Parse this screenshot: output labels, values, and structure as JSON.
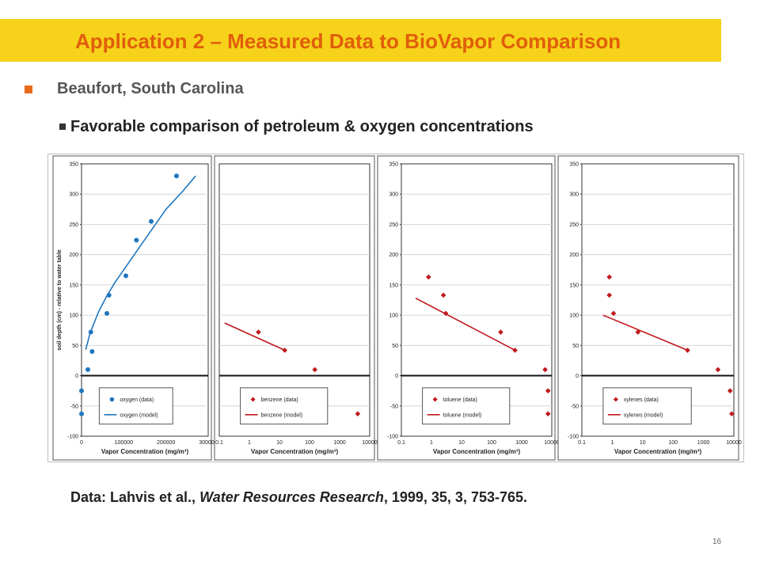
{
  "slide": {
    "title": "Application 2 – Measured Data to BioVapor Comparison",
    "bullet_l1": "Beaufort, South Carolina",
    "bullet_l2": "Favorable comparison of petroleum & oxygen concentrations",
    "citation": {
      "prefix": "Data: Lahvis et al., ",
      "journal": "Water Resources Research",
      "suffix": ", 1999, 35, 3, 753-765."
    },
    "page_number": "16"
  },
  "colors": {
    "title_bar": "#f6d21b",
    "title_text": "#e15e0b",
    "oxygen": "#1f77c0",
    "petroleum": "#c0181c",
    "bullet_marker": "#e8691b"
  },
  "chart_data": [
    {
      "type": "scatter",
      "x_scale": "linear",
      "xlim": [
        0,
        300000
      ],
      "ylim": [
        -100,
        350
      ],
      "xticks": [
        "0",
        "100000",
        "200000",
        "300000"
      ],
      "yticks": [
        "-100",
        "-50",
        "0",
        "50",
        "100",
        "150",
        "200",
        "250",
        "300",
        "350"
      ],
      "xlabel": "Vapor Concentration (mg/m³)",
      "ylabel": "soil depth (cm) - relative to water table",
      "legend": {
        "position": "bottom",
        "data_label": "oxygen (data)",
        "model_label": "oxygen (model)"
      },
      "series": [
        {
          "name": "oxygen (data)",
          "kind": "points",
          "marker": "circle",
          "color": "#1f77c0",
          "points": [
            [
              0,
              -25
            ],
            [
              0,
              -63
            ],
            [
              15000,
              10
            ],
            [
              25000,
              40
            ],
            [
              22000,
              72
            ],
            [
              60000,
              103
            ],
            [
              65000,
              133
            ],
            [
              105000,
              165
            ],
            [
              130000,
              224
            ],
            [
              165000,
              255
            ],
            [
              225000,
              330
            ]
          ]
        },
        {
          "name": "oxygen (model)",
          "kind": "line",
          "color": "#1f77c0",
          "points": [
            [
              10000,
              43
            ],
            [
              20000,
              70
            ],
            [
              40000,
              105
            ],
            [
              60000,
              132
            ],
            [
              80000,
              155
            ],
            [
              100000,
              175
            ],
            [
              130000,
              205
            ],
            [
              160000,
              235
            ],
            [
              200000,
              275
            ],
            [
              240000,
              305
            ],
            [
              270000,
              330
            ]
          ]
        }
      ]
    },
    {
      "type": "scatter",
      "x_scale": "log",
      "xlim": [
        0.1,
        10000
      ],
      "ylim": [
        -100,
        350
      ],
      "xticks": [
        "0.1",
        "1",
        "10",
        "100",
        "1000",
        "10000"
      ],
      "yticks": [],
      "xlabel": "Vapor Concentration  (mg/m³)",
      "legend": {
        "position": "bottom",
        "data_label": "benzene (data)",
        "model_label": "benzene (model)"
      },
      "series": [
        {
          "name": "benzene (data)",
          "kind": "points",
          "marker": "diamond",
          "color": "#c0181c",
          "points": [
            [
              2,
              72
            ],
            [
              15,
              42
            ],
            [
              150,
              10
            ],
            [
              4000,
              -63
            ]
          ]
        },
        {
          "name": "benzene (model)",
          "kind": "line",
          "color": "#c0181c",
          "points": [
            [
              0.15,
              87
            ],
            [
              15,
              42
            ]
          ]
        }
      ]
    },
    {
      "type": "scatter",
      "x_scale": "log",
      "xlim": [
        0.1,
        10000
      ],
      "ylim": [
        -100,
        350
      ],
      "xticks": [
        "0.1",
        "1",
        "10",
        "100",
        "1000",
        "10000"
      ],
      "yticks": [
        "-100",
        "-50",
        "0",
        "50",
        "100",
        "150",
        "200",
        "250",
        "300",
        "350"
      ],
      "xlabel": "Vapor Concentration (mg/m³)",
      "legend": {
        "position": "bottom",
        "data_label": "toluene (data)",
        "model_label": "toluene (model)"
      },
      "series": [
        {
          "name": "toluene (data)",
          "kind": "points",
          "marker": "diamond",
          "color": "#c0181c",
          "points": [
            [
              0.8,
              163
            ],
            [
              2.5,
              133
            ],
            [
              3,
              103
            ],
            [
              200,
              72
            ],
            [
              600,
              42
            ],
            [
              6000,
              10
            ],
            [
              7500,
              -25
            ],
            [
              7500,
              -63
            ]
          ]
        },
        {
          "name": "toluene (model)",
          "kind": "line",
          "color": "#c0181c",
          "points": [
            [
              0.3,
              128
            ],
            [
              600,
              42
            ]
          ]
        }
      ]
    },
    {
      "type": "scatter",
      "x_scale": "log",
      "xlim": [
        0.1,
        10000
      ],
      "ylim": [
        -100,
        350
      ],
      "xticks": [
        "0.1",
        "1",
        "10",
        "100",
        "1000",
        "10000"
      ],
      "yticks": [
        "-100",
        "-50",
        "0",
        "50",
        "100",
        "150",
        "200",
        "250",
        "300",
        "350"
      ],
      "xlabel": "Vapor Concentration (mg/m³)",
      "legend": {
        "position": "bottom",
        "data_label": "xylenes (data)",
        "model_label": "xylenes (model)"
      },
      "series": [
        {
          "name": "xylenes (data)",
          "kind": "points",
          "marker": "diamond",
          "color": "#c0181c",
          "points": [
            [
              0.8,
              163
            ],
            [
              0.8,
              133
            ],
            [
              1.1,
              103
            ],
            [
              7,
              72
            ],
            [
              300,
              42
            ],
            [
              3000,
              10
            ],
            [
              7500,
              -25
            ],
            [
              8500,
              -63
            ]
          ]
        },
        {
          "name": "xylenes (model)",
          "kind": "line",
          "color": "#c0181c",
          "points": [
            [
              0.5,
              100
            ],
            [
              300,
              42
            ]
          ]
        }
      ]
    }
  ]
}
